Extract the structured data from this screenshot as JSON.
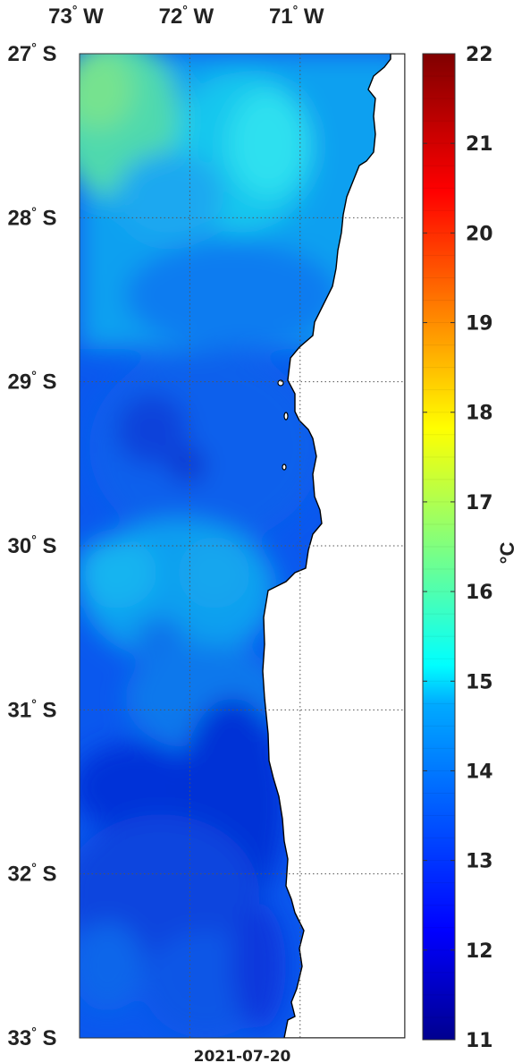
{
  "chart_data": {
    "type": "heatmap",
    "title": "",
    "date": "2021-07-20",
    "x_axis": {
      "ticks": [
        {
          "deg": "73",
          "hemi": "W"
        },
        {
          "deg": "72",
          "hemi": "W"
        },
        {
          "deg": "71",
          "hemi": "W"
        }
      ],
      "range": [
        -73.0,
        -70.05
      ]
    },
    "y_axis": {
      "ticks": [
        {
          "deg": "27",
          "hemi": "S"
        },
        {
          "deg": "28",
          "hemi": "S"
        },
        {
          "deg": "29",
          "hemi": "S"
        },
        {
          "deg": "30",
          "hemi": "S"
        },
        {
          "deg": "31",
          "hemi": "S"
        },
        {
          "deg": "32",
          "hemi": "S"
        },
        {
          "deg": "33",
          "hemi": "S"
        }
      ],
      "range": [
        -33.0,
        -27.0
      ]
    },
    "grid": "dotted",
    "colorbar": {
      "label": "°C",
      "min": 11,
      "max": 22,
      "ticks": [
        "22",
        "21",
        "20",
        "19",
        "18",
        "17",
        "16",
        "15",
        "14",
        "13",
        "12",
        "11"
      ],
      "colormap": "jet"
    },
    "field_description_values": {
      "northwest_max_c": 15.6,
      "offshore_typical_c": 13.4,
      "southern_coastal_min_c": 12.3
    }
  },
  "colors": {
    "land": "#ffffff",
    "coastline": "#000000",
    "grid": "#555555"
  }
}
